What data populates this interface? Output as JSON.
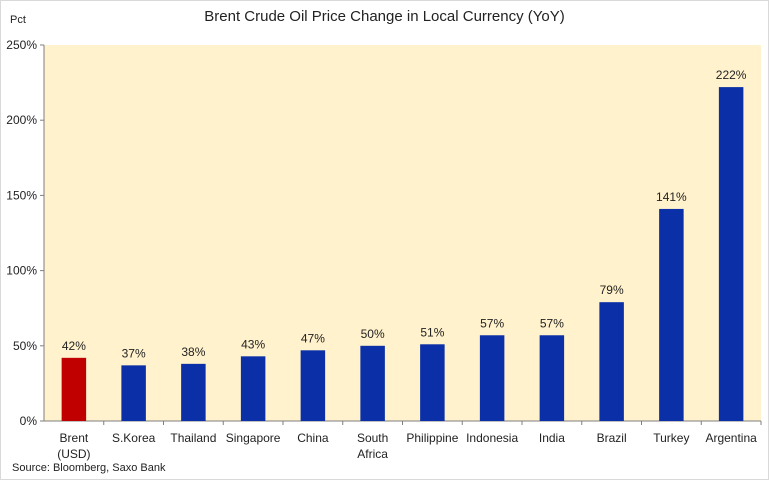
{
  "chart_data": {
    "type": "bar",
    "title": "Brent Crude Oil Price Change in Local Currency (YoY)",
    "ylabel": "Pct",
    "source": "Source: Bloomberg, Saxo Bank",
    "categories": [
      [
        "Brent",
        "(USD)"
      ],
      [
        "S.Korea"
      ],
      [
        "Thailand"
      ],
      [
        "Singapore"
      ],
      [
        "China"
      ],
      [
        "South",
        "Africa"
      ],
      [
        "Philippine"
      ],
      [
        "Indonesia"
      ],
      [
        "India"
      ],
      [
        "Brazil"
      ],
      [
        "Turkey"
      ],
      [
        "Argentina"
      ]
    ],
    "values": [
      42,
      37,
      38,
      43,
      47,
      50,
      51,
      57,
      57,
      79,
      141,
      222
    ],
    "data_labels": [
      "42%",
      "37%",
      "38%",
      "43%",
      "47%",
      "50%",
      "51%",
      "57%",
      "57%",
      "79%",
      "141%",
      "222%"
    ],
    "ylim": [
      0,
      250
    ],
    "yticks": [
      0,
      50,
      100,
      150,
      200,
      250
    ],
    "ytick_labels": [
      "0%",
      "50%",
      "100%",
      "150%",
      "200%",
      "250%"
    ],
    "grid": false,
    "legend": "none",
    "colors": {
      "highlight": "#c00000",
      "bar": "#0a2fa6",
      "plot_background": "#fff2cc",
      "axis": "#7f7f7f"
    },
    "highlight_index": 0
  }
}
